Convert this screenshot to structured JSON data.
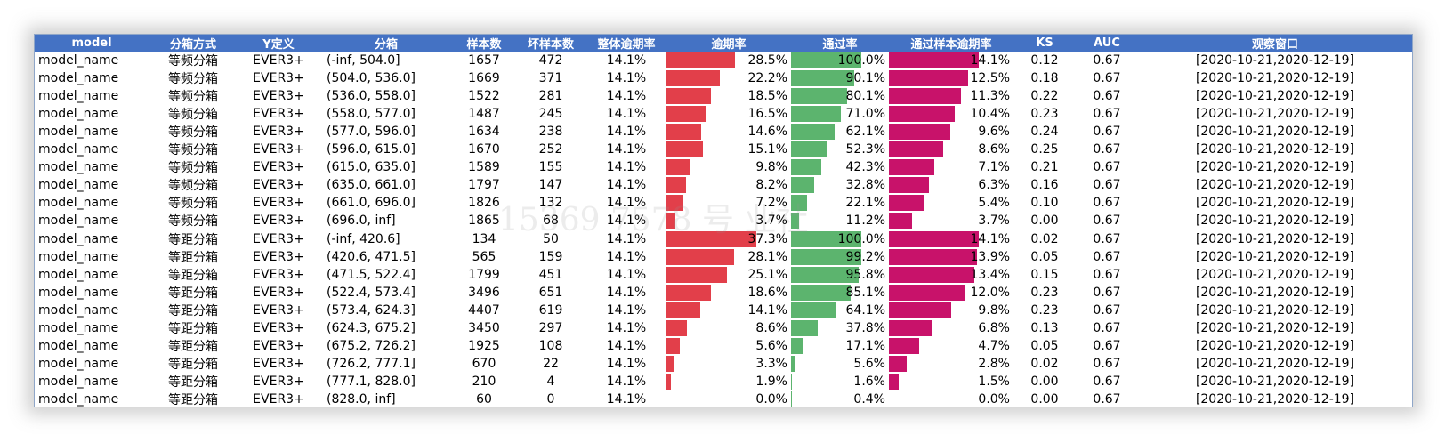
{
  "header": {
    "model": "model",
    "method": "分箱方式",
    "ydef": "Y定义",
    "bin": "分箱",
    "n": "样本数",
    "bad": "坏样本数",
    "overall_rate": "整体逾期率",
    "overdue_rate": "逾期率",
    "pass_rate": "通过率",
    "pass_overdue_rate": "通过样本逾期率",
    "ks": "KS",
    "auc": "AUC",
    "window": "观察窗口"
  },
  "watermark": "15369 7578 号 业社",
  "bar_colors": {
    "overdue": "#e23f4a",
    "pass": "#5cb46e",
    "pass_overdue": "#c8126a"
  },
  "bar_scale": {
    "overdue_max": 37.3,
    "pass_max": 100.0,
    "pass_overdue_max": 14.1
  },
  "rows": [
    {
      "model": "model_name",
      "method": "等频分箱",
      "ydef": "EVER3+",
      "bin": "(-inf, 504.0]",
      "n": "1657",
      "bad": "472",
      "overall": "14.1%",
      "overdue": "28.5%",
      "overdue_v": 28.5,
      "pass": "100.0%",
      "pass_v": 100.0,
      "pass_overdue": "14.1%",
      "pass_overdue_v": 14.1,
      "ks": "0.12",
      "auc": "0.67",
      "window": "[2020-10-21,2020-12-19]"
    },
    {
      "model": "model_name",
      "method": "等频分箱",
      "ydef": "EVER3+",
      "bin": "(504.0, 536.0]",
      "n": "1669",
      "bad": "371",
      "overall": "14.1%",
      "overdue": "22.2%",
      "overdue_v": 22.2,
      "pass": "90.1%",
      "pass_v": 90.1,
      "pass_overdue": "12.5%",
      "pass_overdue_v": 12.5,
      "ks": "0.18",
      "auc": "0.67",
      "window": "[2020-10-21,2020-12-19]"
    },
    {
      "model": "model_name",
      "method": "等频分箱",
      "ydef": "EVER3+",
      "bin": "(536.0, 558.0]",
      "n": "1522",
      "bad": "281",
      "overall": "14.1%",
      "overdue": "18.5%",
      "overdue_v": 18.5,
      "pass": "80.1%",
      "pass_v": 80.1,
      "pass_overdue": "11.3%",
      "pass_overdue_v": 11.3,
      "ks": "0.22",
      "auc": "0.67",
      "window": "[2020-10-21,2020-12-19]"
    },
    {
      "model": "model_name",
      "method": "等频分箱",
      "ydef": "EVER3+",
      "bin": "(558.0, 577.0]",
      "n": "1487",
      "bad": "245",
      "overall": "14.1%",
      "overdue": "16.5%",
      "overdue_v": 16.5,
      "pass": "71.0%",
      "pass_v": 71.0,
      "pass_overdue": "10.4%",
      "pass_overdue_v": 10.4,
      "ks": "0.23",
      "auc": "0.67",
      "window": "[2020-10-21,2020-12-19]"
    },
    {
      "model": "model_name",
      "method": "等频分箱",
      "ydef": "EVER3+",
      "bin": "(577.0, 596.0]",
      "n": "1634",
      "bad": "238",
      "overall": "14.1%",
      "overdue": "14.6%",
      "overdue_v": 14.6,
      "pass": "62.1%",
      "pass_v": 62.1,
      "pass_overdue": "9.6%",
      "pass_overdue_v": 9.6,
      "ks": "0.24",
      "auc": "0.67",
      "window": "[2020-10-21,2020-12-19]"
    },
    {
      "model": "model_name",
      "method": "等频分箱",
      "ydef": "EVER3+",
      "bin": "(596.0, 615.0]",
      "n": "1670",
      "bad": "252",
      "overall": "14.1%",
      "overdue": "15.1%",
      "overdue_v": 15.1,
      "pass": "52.3%",
      "pass_v": 52.3,
      "pass_overdue": "8.6%",
      "pass_overdue_v": 8.6,
      "ks": "0.25",
      "auc": "0.67",
      "window": "[2020-10-21,2020-12-19]"
    },
    {
      "model": "model_name",
      "method": "等频分箱",
      "ydef": "EVER3+",
      "bin": "(615.0, 635.0]",
      "n": "1589",
      "bad": "155",
      "overall": "14.1%",
      "overdue": "9.8%",
      "overdue_v": 9.8,
      "pass": "42.3%",
      "pass_v": 42.3,
      "pass_overdue": "7.1%",
      "pass_overdue_v": 7.1,
      "ks": "0.21",
      "auc": "0.67",
      "window": "[2020-10-21,2020-12-19]"
    },
    {
      "model": "model_name",
      "method": "等频分箱",
      "ydef": "EVER3+",
      "bin": "(635.0, 661.0]",
      "n": "1797",
      "bad": "147",
      "overall": "14.1%",
      "overdue": "8.2%",
      "overdue_v": 8.2,
      "pass": "32.8%",
      "pass_v": 32.8,
      "pass_overdue": "6.3%",
      "pass_overdue_v": 6.3,
      "ks": "0.16",
      "auc": "0.67",
      "window": "[2020-10-21,2020-12-19]"
    },
    {
      "model": "model_name",
      "method": "等频分箱",
      "ydef": "EVER3+",
      "bin": "(661.0, 696.0]",
      "n": "1826",
      "bad": "132",
      "overall": "14.1%",
      "overdue": "7.2%",
      "overdue_v": 7.2,
      "pass": "22.1%",
      "pass_v": 22.1,
      "pass_overdue": "5.4%",
      "pass_overdue_v": 5.4,
      "ks": "0.10",
      "auc": "0.67",
      "window": "[2020-10-21,2020-12-19]"
    },
    {
      "model": "model_name",
      "method": "等频分箱",
      "ydef": "EVER3+",
      "bin": "(696.0, inf]",
      "n": "1865",
      "bad": "68",
      "overall": "14.1%",
      "overdue": "3.7%",
      "overdue_v": 3.7,
      "pass": "11.2%",
      "pass_v": 11.2,
      "pass_overdue": "3.7%",
      "pass_overdue_v": 3.7,
      "ks": "0.00",
      "auc": "0.67",
      "window": "[2020-10-21,2020-12-19]"
    },
    {
      "model": "model_name",
      "method": "等距分箱",
      "ydef": "EVER3+",
      "bin": "(-inf, 420.6]",
      "n": "134",
      "bad": "50",
      "overall": "14.1%",
      "overdue": "37.3%",
      "overdue_v": 37.3,
      "pass": "100.0%",
      "pass_v": 100.0,
      "pass_overdue": "14.1%",
      "pass_overdue_v": 14.1,
      "ks": "0.02",
      "auc": "0.67",
      "window": "[2020-10-21,2020-12-19]",
      "group_start": true
    },
    {
      "model": "model_name",
      "method": "等距分箱",
      "ydef": "EVER3+",
      "bin": "(420.6, 471.5]",
      "n": "565",
      "bad": "159",
      "overall": "14.1%",
      "overdue": "28.1%",
      "overdue_v": 28.1,
      "pass": "99.2%",
      "pass_v": 99.2,
      "pass_overdue": "13.9%",
      "pass_overdue_v": 13.9,
      "ks": "0.05",
      "auc": "0.67",
      "window": "[2020-10-21,2020-12-19]"
    },
    {
      "model": "model_name",
      "method": "等距分箱",
      "ydef": "EVER3+",
      "bin": "(471.5, 522.4]",
      "n": "1799",
      "bad": "451",
      "overall": "14.1%",
      "overdue": "25.1%",
      "overdue_v": 25.1,
      "pass": "95.8%",
      "pass_v": 95.8,
      "pass_overdue": "13.4%",
      "pass_overdue_v": 13.4,
      "ks": "0.15",
      "auc": "0.67",
      "window": "[2020-10-21,2020-12-19]"
    },
    {
      "model": "model_name",
      "method": "等距分箱",
      "ydef": "EVER3+",
      "bin": "(522.4, 573.4]",
      "n": "3496",
      "bad": "651",
      "overall": "14.1%",
      "overdue": "18.6%",
      "overdue_v": 18.6,
      "pass": "85.1%",
      "pass_v": 85.1,
      "pass_overdue": "12.0%",
      "pass_overdue_v": 12.0,
      "ks": "0.23",
      "auc": "0.67",
      "window": "[2020-10-21,2020-12-19]"
    },
    {
      "model": "model_name",
      "method": "等距分箱",
      "ydef": "EVER3+",
      "bin": "(573.4, 624.3]",
      "n": "4407",
      "bad": "619",
      "overall": "14.1%",
      "overdue": "14.1%",
      "overdue_v": 14.1,
      "pass": "64.1%",
      "pass_v": 64.1,
      "pass_overdue": "9.8%",
      "pass_overdue_v": 9.8,
      "ks": "0.23",
      "auc": "0.67",
      "window": "[2020-10-21,2020-12-19]"
    },
    {
      "model": "model_name",
      "method": "等距分箱",
      "ydef": "EVER3+",
      "bin": "(624.3, 675.2]",
      "n": "3450",
      "bad": "297",
      "overall": "14.1%",
      "overdue": "8.6%",
      "overdue_v": 8.6,
      "pass": "37.8%",
      "pass_v": 37.8,
      "pass_overdue": "6.8%",
      "pass_overdue_v": 6.8,
      "ks": "0.13",
      "auc": "0.67",
      "window": "[2020-10-21,2020-12-19]"
    },
    {
      "model": "model_name",
      "method": "等距分箱",
      "ydef": "EVER3+",
      "bin": "(675.2, 726.2]",
      "n": "1925",
      "bad": "108",
      "overall": "14.1%",
      "overdue": "5.6%",
      "overdue_v": 5.6,
      "pass": "17.1%",
      "pass_v": 17.1,
      "pass_overdue": "4.7%",
      "pass_overdue_v": 4.7,
      "ks": "0.05",
      "auc": "0.67",
      "window": "[2020-10-21,2020-12-19]"
    },
    {
      "model": "model_name",
      "method": "等距分箱",
      "ydef": "EVER3+",
      "bin": "(726.2, 777.1]",
      "n": "670",
      "bad": "22",
      "overall": "14.1%",
      "overdue": "3.3%",
      "overdue_v": 3.3,
      "pass": "5.6%",
      "pass_v": 5.6,
      "pass_overdue": "2.8%",
      "pass_overdue_v": 2.8,
      "ks": "0.02",
      "auc": "0.67",
      "window": "[2020-10-21,2020-12-19]"
    },
    {
      "model": "model_name",
      "method": "等距分箱",
      "ydef": "EVER3+",
      "bin": "(777.1, 828.0]",
      "n": "210",
      "bad": "4",
      "overall": "14.1%",
      "overdue": "1.9%",
      "overdue_v": 1.9,
      "pass": "1.6%",
      "pass_v": 1.6,
      "pass_overdue": "1.5%",
      "pass_overdue_v": 1.5,
      "ks": "0.00",
      "auc": "0.67",
      "window": "[2020-10-21,2020-12-19]"
    },
    {
      "model": "model_name",
      "method": "等距分箱",
      "ydef": "EVER3+",
      "bin": "(828.0, inf]",
      "n": "60",
      "bad": "0",
      "overall": "14.1%",
      "overdue": "0.0%",
      "overdue_v": 0.0,
      "pass": "0.4%",
      "pass_v": 0.4,
      "pass_overdue": "0.0%",
      "pass_overdue_v": 0.0,
      "ks": "0.00",
      "auc": "0.67",
      "window": "[2020-10-21,2020-12-19]"
    }
  ]
}
